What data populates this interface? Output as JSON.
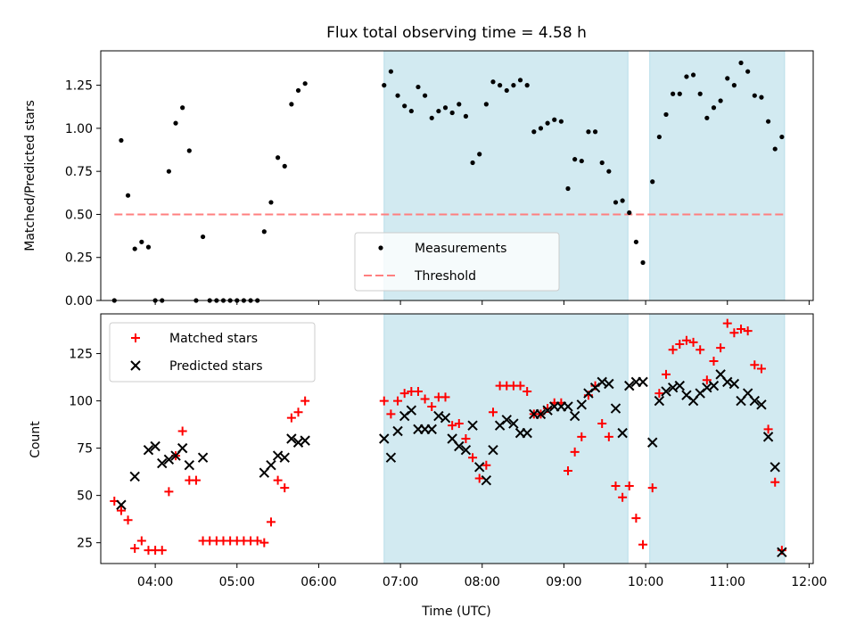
{
  "chart_data": [
    {
      "type": "scatter",
      "title": "Flux total observing time = 4.58 h",
      "ylabel": "Matched/Predicted stars",
      "xlabel": "",
      "xlim": [
        "03:20",
        "12:03"
      ],
      "ylim": [
        0,
        1.45
      ],
      "x_ticks": [
        "04:00",
        "05:00",
        "06:00",
        "07:00",
        "08:00",
        "09:00",
        "10:00",
        "11:00",
        "12:00"
      ],
      "y_ticks": [
        "0.00",
        "0.25",
        "0.50",
        "0.75",
        "1.00",
        "1.25"
      ],
      "shaded_intervals": [
        [
          "06:48",
          "09:47"
        ],
        [
          "10:03",
          "11:42"
        ]
      ],
      "legend_position": "lower-center",
      "threshold": {
        "name": "Threshold",
        "y": 0.5,
        "x_range": [
          "03:30",
          "11:43"
        ],
        "color": "#ff7f7f",
        "style": "dashed"
      },
      "series": [
        {
          "name": "Measurements",
          "color": "#000000",
          "marker": "dot",
          "points": [
            [
              "03:30",
              0.0
            ],
            [
              "03:35",
              0.93
            ],
            [
              "03:40",
              0.61
            ],
            [
              "03:45",
              0.3
            ],
            [
              "03:50",
              0.34
            ],
            [
              "03:55",
              0.31
            ],
            [
              "04:00",
              0.0
            ],
            [
              "04:05",
              0.0
            ],
            [
              "04:10",
              0.75
            ],
            [
              "04:15",
              1.03
            ],
            [
              "04:20",
              1.12
            ],
            [
              "04:25",
              0.87
            ],
            [
              "04:30",
              0.0
            ],
            [
              "04:35",
              0.37
            ],
            [
              "04:40",
              0.0
            ],
            [
              "04:45",
              0.0
            ],
            [
              "04:50",
              0.0
            ],
            [
              "04:55",
              0.0
            ],
            [
              "05:00",
              0.0
            ],
            [
              "05:05",
              0.0
            ],
            [
              "05:10",
              0.0
            ],
            [
              "05:15",
              0.0
            ],
            [
              "05:20",
              0.4
            ],
            [
              "05:25",
              0.57
            ],
            [
              "05:30",
              0.83
            ],
            [
              "05:35",
              0.78
            ],
            [
              "05:40",
              1.14
            ],
            [
              "05:45",
              1.22
            ],
            [
              "05:50",
              1.26
            ],
            [
              "06:48",
              1.25
            ],
            [
              "06:53",
              1.33
            ],
            [
              "06:58",
              1.19
            ],
            [
              "07:03",
              1.13
            ],
            [
              "07:08",
              1.1
            ],
            [
              "07:13",
              1.24
            ],
            [
              "07:18",
              1.19
            ],
            [
              "07:23",
              1.06
            ],
            [
              "07:28",
              1.1
            ],
            [
              "07:33",
              1.12
            ],
            [
              "07:38",
              1.09
            ],
            [
              "07:43",
              1.14
            ],
            [
              "07:48",
              1.07
            ],
            [
              "07:53",
              0.8
            ],
            [
              "07:58",
              0.85
            ],
            [
              "08:03",
              1.14
            ],
            [
              "08:08",
              1.27
            ],
            [
              "08:13",
              1.25
            ],
            [
              "08:18",
              1.22
            ],
            [
              "08:23",
              1.25
            ],
            [
              "08:28",
              1.28
            ],
            [
              "08:33",
              1.25
            ],
            [
              "08:38",
              0.98
            ],
            [
              "08:43",
              1.0
            ],
            [
              "08:48",
              1.03
            ],
            [
              "08:53",
              1.05
            ],
            [
              "08:58",
              1.04
            ],
            [
              "09:03",
              0.65
            ],
            [
              "09:08",
              0.82
            ],
            [
              "09:13",
              0.81
            ],
            [
              "09:18",
              0.98
            ],
            [
              "09:23",
              0.98
            ],
            [
              "09:28",
              0.8
            ],
            [
              "09:33",
              0.75
            ],
            [
              "09:38",
              0.57
            ],
            [
              "09:43",
              0.58
            ],
            [
              "09:48",
              0.51
            ],
            [
              "09:53",
              0.34
            ],
            [
              "09:58",
              0.22
            ],
            [
              "10:05",
              0.69
            ],
            [
              "10:10",
              0.95
            ],
            [
              "10:15",
              1.08
            ],
            [
              "10:20",
              1.2
            ],
            [
              "10:25",
              1.2
            ],
            [
              "10:30",
              1.3
            ],
            [
              "10:35",
              1.31
            ],
            [
              "10:40",
              1.2
            ],
            [
              "10:45",
              1.06
            ],
            [
              "10:50",
              1.12
            ],
            [
              "10:55",
              1.16
            ],
            [
              "11:00",
              1.29
            ],
            [
              "11:05",
              1.25
            ],
            [
              "11:10",
              1.38
            ],
            [
              "11:15",
              1.33
            ],
            [
              "11:20",
              1.19
            ],
            [
              "11:25",
              1.18
            ],
            [
              "11:30",
              1.04
            ],
            [
              "11:35",
              0.88
            ],
            [
              "11:40",
              0.95
            ]
          ]
        }
      ]
    },
    {
      "type": "scatter",
      "title": "",
      "ylabel": "Count",
      "xlabel": "Time (UTC)",
      "xlim": [
        "03:20",
        "12:03"
      ],
      "ylim": [
        14,
        146
      ],
      "x_ticks": [
        "04:00",
        "05:00",
        "06:00",
        "07:00",
        "08:00",
        "09:00",
        "10:00",
        "11:00",
        "12:00"
      ],
      "y_ticks": [
        "25",
        "50",
        "75",
        "100",
        "125"
      ],
      "shaded_intervals": [
        [
          "06:48",
          "09:47"
        ],
        [
          "10:03",
          "11:42"
        ]
      ],
      "legend_position": "upper-left",
      "series": [
        {
          "name": "Matched stars",
          "color": "#ff0000",
          "marker": "plus",
          "points": [
            [
              "03:30",
              47
            ],
            [
              "03:35",
              42
            ],
            [
              "03:40",
              37
            ],
            [
              "03:45",
              22
            ],
            [
              "03:50",
              26
            ],
            [
              "03:55",
              21
            ],
            [
              "04:00",
              21
            ],
            [
              "04:05",
              21
            ],
            [
              "04:10",
              52
            ],
            [
              "04:15",
              71
            ],
            [
              "04:20",
              84
            ],
            [
              "04:25",
              58
            ],
            [
              "04:30",
              58
            ],
            [
              "04:35",
              26
            ],
            [
              "04:40",
              26
            ],
            [
              "04:45",
              26
            ],
            [
              "04:50",
              26
            ],
            [
              "04:55",
              26
            ],
            [
              "05:00",
              26
            ],
            [
              "05:05",
              26
            ],
            [
              "05:10",
              26
            ],
            [
              "05:15",
              26
            ],
            [
              "05:20",
              25
            ],
            [
              "05:25",
              36
            ],
            [
              "05:30",
              58
            ],
            [
              "05:35",
              54
            ],
            [
              "05:40",
              91
            ],
            [
              "05:45",
              94
            ],
            [
              "05:50",
              100
            ],
            [
              "06:48",
              100
            ],
            [
              "06:53",
              93
            ],
            [
              "06:58",
              100
            ],
            [
              "07:03",
              104
            ],
            [
              "07:08",
              105
            ],
            [
              "07:13",
              105
            ],
            [
              "07:18",
              101
            ],
            [
              "07:23",
              97
            ],
            [
              "07:28",
              102
            ],
            [
              "07:33",
              102
            ],
            [
              "07:38",
              87
            ],
            [
              "07:43",
              88
            ],
            [
              "07:48",
              80
            ],
            [
              "07:53",
              70
            ],
            [
              "07:58",
              59
            ],
            [
              "08:03",
              66
            ],
            [
              "08:08",
              94
            ],
            [
              "08:13",
              108
            ],
            [
              "08:18",
              108
            ],
            [
              "08:23",
              108
            ],
            [
              "08:28",
              108
            ],
            [
              "08:33",
              105
            ],
            [
              "08:38",
              93
            ],
            [
              "08:43",
              93
            ],
            [
              "08:48",
              96
            ],
            [
              "08:53",
              99
            ],
            [
              "08:58",
              99
            ],
            [
              "09:03",
              63
            ],
            [
              "09:08",
              73
            ],
            [
              "09:13",
              81
            ],
            [
              "09:18",
              103
            ],
            [
              "09:23",
              108
            ],
            [
              "09:28",
              88
            ],
            [
              "09:33",
              81
            ],
            [
              "09:38",
              55
            ],
            [
              "09:43",
              49
            ],
            [
              "09:48",
              55
            ],
            [
              "09:53",
              38
            ],
            [
              "09:58",
              24
            ],
            [
              "10:05",
              54
            ],
            [
              "10:10",
              104
            ],
            [
              "10:15",
              114
            ],
            [
              "10:20",
              127
            ],
            [
              "10:25",
              130
            ],
            [
              "10:30",
              132
            ],
            [
              "10:35",
              131
            ],
            [
              "10:40",
              127
            ],
            [
              "10:45",
              111
            ],
            [
              "10:50",
              121
            ],
            [
              "10:55",
              128
            ],
            [
              "11:00",
              141
            ],
            [
              "11:05",
              136
            ],
            [
              "11:10",
              138
            ],
            [
              "11:15",
              137
            ],
            [
              "11:20",
              119
            ],
            [
              "11:25",
              117
            ],
            [
              "11:30",
              85
            ],
            [
              "11:35",
              57
            ],
            [
              "11:40",
              21
            ]
          ]
        },
        {
          "name": "Predicted stars",
          "color": "#000000",
          "marker": "x",
          "points": [
            [
              "03:35",
              45
            ],
            [
              "03:45",
              60
            ],
            [
              "03:55",
              74
            ],
            [
              "04:00",
              76
            ],
            [
              "04:05",
              67
            ],
            [
              "04:10",
              69
            ],
            [
              "04:15",
              71
            ],
            [
              "04:20",
              75
            ],
            [
              "04:25",
              66
            ],
            [
              "04:35",
              70
            ],
            [
              "05:20",
              62
            ],
            [
              "05:25",
              66
            ],
            [
              "05:30",
              71
            ],
            [
              "05:35",
              70
            ],
            [
              "05:40",
              80
            ],
            [
              "05:45",
              78
            ],
            [
              "05:50",
              79
            ],
            [
              "06:48",
              80
            ],
            [
              "06:53",
              70
            ],
            [
              "06:58",
              84
            ],
            [
              "07:03",
              92
            ],
            [
              "07:08",
              95
            ],
            [
              "07:13",
              85
            ],
            [
              "07:18",
              85
            ],
            [
              "07:23",
              85
            ],
            [
              "07:28",
              92
            ],
            [
              "07:33",
              91
            ],
            [
              "07:38",
              80
            ],
            [
              "07:43",
              76
            ],
            [
              "07:48",
              74
            ],
            [
              "07:53",
              87
            ],
            [
              "07:58",
              65
            ],
            [
              "08:03",
              58
            ],
            [
              "08:08",
              74
            ],
            [
              "08:13",
              87
            ],
            [
              "08:18",
              90
            ],
            [
              "08:23",
              88
            ],
            [
              "08:28",
              83
            ],
            [
              "08:33",
              83
            ],
            [
              "08:38",
              93
            ],
            [
              "08:43",
              93
            ],
            [
              "08:48",
              95
            ],
            [
              "08:53",
              97
            ],
            [
              "08:58",
              97
            ],
            [
              "09:03",
              97
            ],
            [
              "09:08",
              92
            ],
            [
              "09:13",
              98
            ],
            [
              "09:18",
              104
            ],
            [
              "09:23",
              107
            ],
            [
              "09:28",
              110
            ],
            [
              "09:33",
              109
            ],
            [
              "09:38",
              96
            ],
            [
              "09:43",
              83
            ],
            [
              "09:48",
              108
            ],
            [
              "09:53",
              110
            ],
            [
              "09:58",
              110
            ],
            [
              "10:05",
              78
            ],
            [
              "10:10",
              100
            ],
            [
              "10:15",
              105
            ],
            [
              "10:20",
              107
            ],
            [
              "10:25",
              108
            ],
            [
              "10:30",
              103
            ],
            [
              "10:35",
              100
            ],
            [
              "10:40",
              104
            ],
            [
              "10:45",
              107
            ],
            [
              "10:50",
              108
            ],
            [
              "10:55",
              114
            ],
            [
              "11:00",
              110
            ],
            [
              "11:05",
              109
            ],
            [
              "11:10",
              100
            ],
            [
              "11:15",
              104
            ],
            [
              "11:20",
              100
            ],
            [
              "11:25",
              98
            ],
            [
              "11:30",
              81
            ],
            [
              "11:35",
              65
            ],
            [
              "11:40",
              20
            ]
          ]
        }
      ]
    }
  ]
}
